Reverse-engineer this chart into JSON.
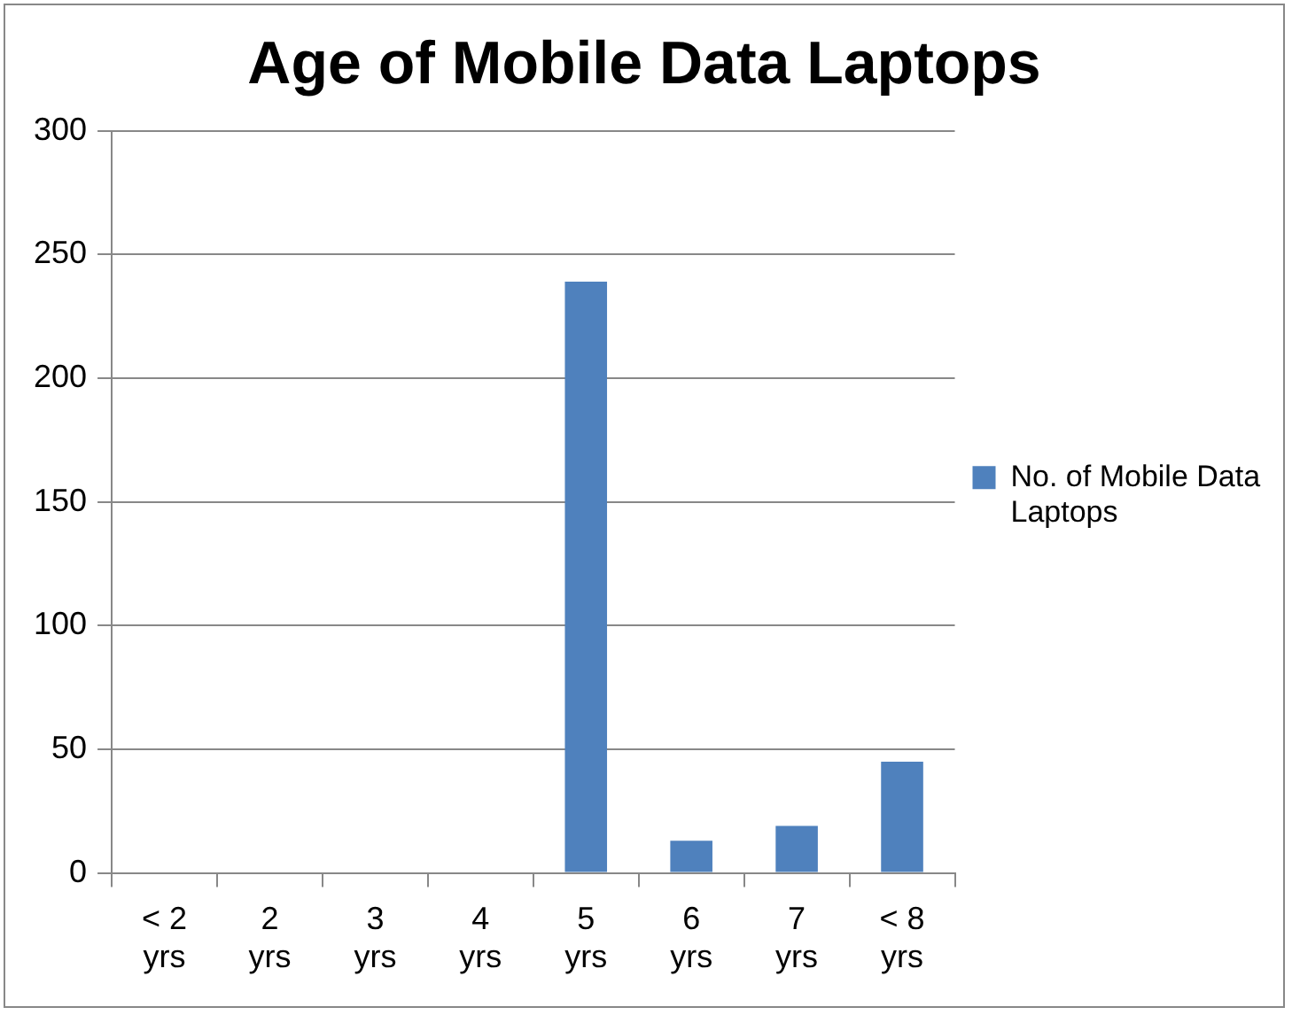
{
  "chart_data": {
    "type": "bar",
    "title": "Age of Mobile Data Laptops",
    "categories": [
      "< 2 yrs",
      "2 yrs",
      "3 yrs",
      "4 yrs",
      "5 yrs",
      "6 yrs",
      "7 yrs",
      "< 8 yrs"
    ],
    "series": [
      {
        "name": "No. of Mobile Data Laptops",
        "color": "#4f81bd",
        "values": [
          0,
          0,
          0,
          0,
          239,
          13,
          19,
          45
        ]
      }
    ],
    "ylim": [
      0,
      300
    ],
    "yticks": [
      0,
      50,
      100,
      150,
      200,
      250,
      300
    ],
    "grid": "y",
    "legend": "right"
  }
}
